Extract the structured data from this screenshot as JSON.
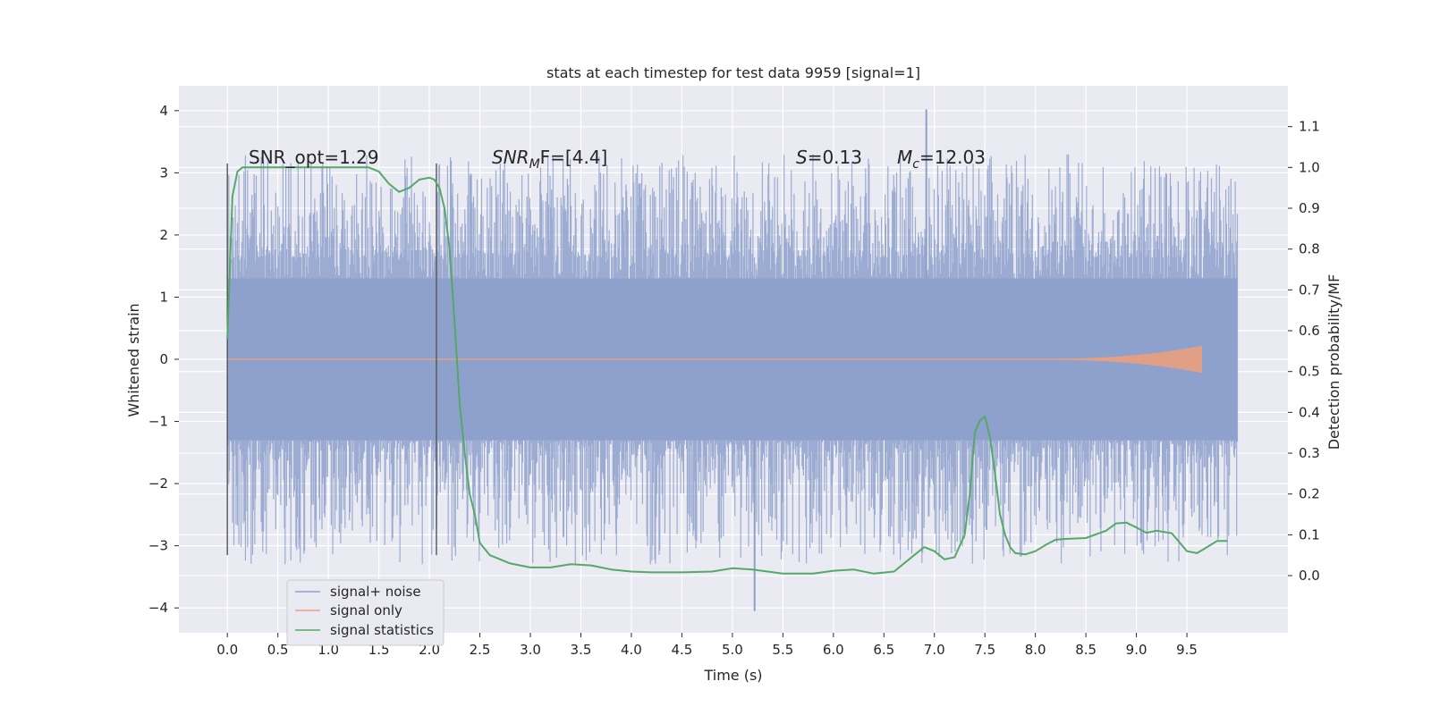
{
  "chart_data": {
    "type": "line",
    "title": "stats at each timestep for test data 9959 [signal=1]",
    "xlabel": "Time (s)",
    "ylabel": "Whitened strain",
    "y2label": "Detection probability/MF",
    "xlim": [
      -0.48,
      10.5
    ],
    "ylim": [
      -4.4,
      4.4
    ],
    "y2lim": [
      -0.14,
      1.2
    ],
    "xticks": [
      0.0,
      0.5,
      1.0,
      1.5,
      2.0,
      2.5,
      3.0,
      3.5,
      4.0,
      4.5,
      5.0,
      5.5,
      6.0,
      6.5,
      7.0,
      7.5,
      8.0,
      8.5,
      9.0,
      9.5
    ],
    "yticks": [
      4,
      3,
      2,
      1,
      0,
      -1,
      -2,
      -3,
      -4
    ],
    "y2ticks": [
      1.1,
      1.0,
      0.9,
      0.8,
      0.7,
      0.6,
      0.5,
      0.4,
      0.3,
      0.2,
      0.1,
      0.0
    ],
    "grid": true,
    "legend_position": "lower-left",
    "annotations": {
      "snr_opt": "SNR_opt=1.29",
      "snr_mf_main": "SNR",
      "snr_mf_sub": "M",
      "snr_mf_rest": "F=[4.4]",
      "s_main": "S",
      "s_rest": "=0.13",
      "mc_main": "M",
      "mc_sub": "c",
      "mc_rest": "=12.03"
    },
    "vlines": [
      0.0,
      2.07
    ],
    "series": [
      {
        "name": "signal+ noise",
        "color": "#8da0cb",
        "kind": "noise",
        "x_range": [
          0.0,
          10.0
        ],
        "core_band": [
          -1.3,
          1.3
        ],
        "peak_max": 4.02,
        "peak_min": -4.05
      },
      {
        "name": "signal only",
        "color": "#e8a07f",
        "kind": "chirp",
        "x_range": [
          0.0,
          9.65
        ],
        "max_amplitude": 0.22
      },
      {
        "name": "signal statistics",
        "color": "#55a868",
        "axis": "right",
        "x": [
          0.0,
          0.05,
          0.1,
          0.15,
          0.2,
          0.3,
          0.5,
          0.8,
          1.0,
          1.2,
          1.4,
          1.5,
          1.6,
          1.7,
          1.8,
          1.9,
          2.0,
          2.05,
          2.1,
          2.15,
          2.2,
          2.25,
          2.3,
          2.35,
          2.4,
          2.45,
          2.5,
          2.6,
          2.8,
          3.0,
          3.2,
          3.4,
          3.6,
          3.8,
          4.0,
          4.2,
          4.5,
          4.8,
          5.0,
          5.2,
          5.5,
          5.8,
          6.0,
          6.2,
          6.4,
          6.6,
          6.8,
          6.9,
          7.0,
          7.1,
          7.2,
          7.3,
          7.35,
          7.4,
          7.45,
          7.5,
          7.55,
          7.6,
          7.65,
          7.7,
          7.75,
          7.8,
          7.9,
          8.0,
          8.1,
          8.2,
          8.3,
          8.5,
          8.7,
          8.8,
          8.9,
          9.0,
          9.1,
          9.2,
          9.35,
          9.5,
          9.6,
          9.7,
          9.8,
          9.9
        ],
        "y": [
          0.58,
          0.93,
          0.99,
          1.0,
          1.0,
          1.0,
          1.0,
          1.0,
          1.0,
          1.0,
          1.0,
          0.99,
          0.96,
          0.94,
          0.95,
          0.97,
          0.975,
          0.97,
          0.95,
          0.9,
          0.8,
          0.62,
          0.42,
          0.3,
          0.2,
          0.15,
          0.08,
          0.05,
          0.03,
          0.02,
          0.02,
          0.028,
          0.025,
          0.015,
          0.01,
          0.008,
          0.008,
          0.01,
          0.018,
          0.015,
          0.005,
          0.005,
          0.012,
          0.015,
          0.005,
          0.01,
          0.05,
          0.07,
          0.06,
          0.04,
          0.045,
          0.1,
          0.2,
          0.35,
          0.38,
          0.39,
          0.34,
          0.25,
          0.15,
          0.1,
          0.07,
          0.055,
          0.052,
          0.06,
          0.075,
          0.088,
          0.09,
          0.092,
          0.11,
          0.128,
          0.13,
          0.118,
          0.105,
          0.11,
          0.104,
          0.06,
          0.055,
          0.07,
          0.085,
          0.085
        ]
      }
    ]
  }
}
